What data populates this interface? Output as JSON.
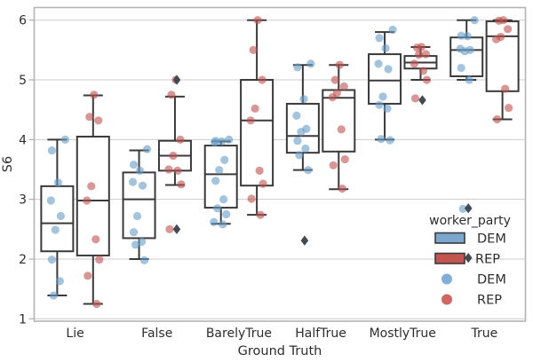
{
  "colors": {
    "dem_box": "#7BA7CE",
    "rep_box": "#C4544F",
    "dem_point": "#669CC8",
    "rep_point": "#C0504D",
    "dem_point_legend": "#6FA3D3",
    "rep_point_legend": "#C9504E",
    "box_edge": "#3A3A3A",
    "outlier_marker": "#424A54",
    "grid": "#CCCCCC",
    "spine": "#B4B4B4",
    "text": "#2D2D2D"
  },
  "legend": {
    "title": "worker_party",
    "box_entries": [
      {
        "label": "DEM"
      },
      {
        "label": "REP"
      }
    ],
    "point_entries": [
      {
        "label": "DEM"
      },
      {
        "label": "REP"
      }
    ]
  },
  "chart_data": {
    "type": "grouped-boxplot-with-strip-points",
    "title": "",
    "xlabel": "Ground Truth",
    "ylabel": "S6",
    "ylim": [
      1,
      6
    ],
    "y_ticks": [
      1,
      2,
      3,
      4,
      5,
      6
    ],
    "grid": "horizontal",
    "hue_field": "worker_party",
    "legend_position": "lower-right",
    "categories": [
      "Lie",
      "False",
      "BarelyTrue",
      "HalfTrue",
      "MostlyTrue",
      "True"
    ],
    "series": [
      {
        "name": "DEM",
        "boxes": [
          {
            "whislo": 1.39,
            "q1": 2.13,
            "med": 2.6,
            "q3": 3.22,
            "whishi": 4.0,
            "outliers": []
          },
          {
            "whislo": 2.0,
            "q1": 2.35,
            "med": 3.0,
            "q3": 3.45,
            "whishi": 3.82,
            "outliers": []
          },
          {
            "whislo": 2.59,
            "q1": 2.86,
            "med": 3.42,
            "q3": 3.9,
            "whishi": 3.97,
            "outliers": []
          },
          {
            "whislo": 3.49,
            "q1": 3.78,
            "med": 4.06,
            "q3": 4.6,
            "whishi": 5.25,
            "outliers": [
              2.31
            ]
          },
          {
            "whislo": 4.0,
            "q1": 4.6,
            "med": 4.99,
            "q3": 5.43,
            "whishi": 5.8,
            "outliers": []
          },
          {
            "whislo": 5.0,
            "q1": 5.06,
            "med": 5.5,
            "q3": 5.71,
            "whishi": 6.0,
            "outliers": [
              2.85,
              2.02
            ]
          }
        ],
        "points": [
          [
            4.0,
            3.82,
            3.28,
            2.98,
            2.72,
            2.49,
            1.99,
            1.63,
            1.39
          ],
          [
            3.84,
            3.58,
            3.48,
            3.29,
            3.23,
            2.72,
            2.45,
            2.29,
            2.24,
            1.98
          ],
          [
            4.0,
            3.98,
            3.97,
            3.95,
            3.66,
            3.49,
            3.31,
            3.0,
            2.85,
            2.75,
            2.62,
            2.58
          ],
          [
            5.27,
            5.21,
            4.68,
            4.4,
            4.18,
            4.13,
            3.98,
            3.85,
            3.74,
            3.49
          ],
          [
            5.84,
            5.7,
            5.53,
            5.27,
            5.18,
            4.72,
            4.58,
            4.52,
            4.01,
            3.99
          ],
          [
            6.0,
            5.74,
            5.73,
            5.52,
            5.5,
            5.48,
            5.2,
            5.0,
            2.84
          ]
        ]
      },
      {
        "name": "REP",
        "boxes": [
          {
            "whislo": 1.25,
            "q1": 2.06,
            "med": 2.98,
            "q3": 4.05,
            "whishi": 4.74,
            "outliers": []
          },
          {
            "whislo": 3.24,
            "q1": 3.48,
            "med": 3.73,
            "q3": 3.98,
            "whishi": 4.72,
            "outliers": [
              5.0,
              2.5
            ]
          },
          {
            "whislo": 2.74,
            "q1": 3.23,
            "med": 4.32,
            "q3": 5.0,
            "whishi": 6.0,
            "outliers": []
          },
          {
            "whislo": 3.17,
            "q1": 3.8,
            "med": 4.7,
            "q3": 4.83,
            "whishi": 5.25,
            "outliers": []
          },
          {
            "whislo": 5.0,
            "q1": 5.19,
            "med": 5.29,
            "q3": 5.4,
            "whishi": 5.55,
            "outliers": [
              4.66
            ]
          },
          {
            "whislo": 4.34,
            "q1": 4.81,
            "med": 5.73,
            "q3": 5.98,
            "whishi": 6.0,
            "outliers": []
          }
        ],
        "points": [
          [
            4.75,
            4.38,
            4.32,
            3.22,
            2.98,
            2.33,
            1.99,
            1.72,
            1.25
          ],
          [
            5.0,
            4.75,
            4.0,
            3.73,
            3.5,
            3.48,
            3.25,
            2.5
          ],
          [
            6.0,
            5.5,
            5.0,
            4.52,
            4.32,
            3.48,
            3.26,
            3.01,
            2.74
          ],
          [
            5.25,
            5.0,
            4.89,
            4.78,
            4.71,
            4.17,
            3.67,
            3.57,
            3.18
          ],
          [
            5.55,
            5.54,
            5.43,
            5.42,
            5.27,
            5.15,
            5.0,
            4.69
          ],
          [
            6.0,
            5.99,
            5.85,
            5.72,
            5.68,
            4.85,
            4.53,
            4.34
          ]
        ]
      }
    ]
  }
}
